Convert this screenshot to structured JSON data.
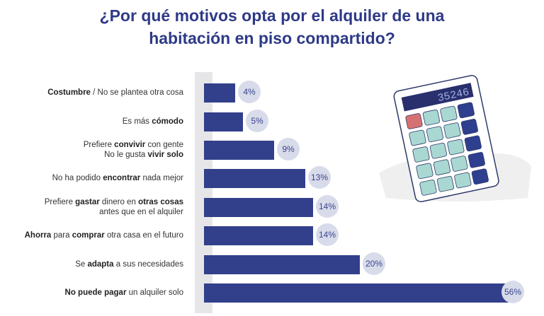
{
  "chart_data": {
    "type": "bar",
    "orientation": "horizontal",
    "title": "¿Por qué motivos opta por el alquiler de una habitación en piso compartido?",
    "title_lines": [
      "¿Por qué motivos opta por el alquiler de una",
      "habitación en piso compartido?"
    ],
    "categories": [
      {
        "lines": [
          [
            {
              "t": "Costumbre",
              "b": true
            },
            {
              "t": " / No se plantea otra cosa",
              "b": false
            }
          ]
        ]
      },
      {
        "lines": [
          [
            {
              "t": "Es más ",
              "b": false
            },
            {
              "t": "cómodo",
              "b": true
            }
          ]
        ]
      },
      {
        "lines": [
          [
            {
              "t": "Prefiere ",
              "b": false
            },
            {
              "t": "convivir",
              "b": true
            },
            {
              "t": " con gente",
              "b": false
            }
          ],
          [
            {
              "t": "No le gusta ",
              "b": false
            },
            {
              "t": "vivir solo",
              "b": true
            }
          ]
        ]
      },
      {
        "lines": [
          [
            {
              "t": "No ha podido ",
              "b": false
            },
            {
              "t": "encontrar",
              "b": true
            },
            {
              "t": " nada mejor",
              "b": false
            }
          ]
        ]
      },
      {
        "lines": [
          [
            {
              "t": "Prefiere ",
              "b": false
            },
            {
              "t": "gastar",
              "b": true
            },
            {
              "t": " dinero en ",
              "b": false
            },
            {
              "t": "otras cosas",
              "b": true
            }
          ],
          [
            {
              "t": "antes que en el alquiler",
              "b": false
            }
          ]
        ]
      },
      {
        "lines": [
          [
            {
              "t": "Ahorra",
              "b": true
            },
            {
              "t": " para ",
              "b": false
            },
            {
              "t": "comprar",
              "b": true
            },
            {
              "t": " otra casa en el futuro",
              "b": false
            }
          ]
        ]
      },
      {
        "lines": [
          [
            {
              "t": "Se ",
              "b": false
            },
            {
              "t": "adapta",
              "b": true
            },
            {
              "t": " a sus necesidades",
              "b": false
            }
          ]
        ]
      },
      {
        "lines": [
          [
            {
              "t": "No puede pagar",
              "b": true
            },
            {
              "t": " un alquiler solo",
              "b": false
            }
          ]
        ]
      }
    ],
    "values": [
      4,
      5,
      9,
      13,
      14,
      14,
      20,
      56
    ],
    "value_labels": [
      "4%",
      "5%",
      "9%",
      "13%",
      "14%",
      "14%",
      "20%",
      "56%"
    ],
    "unit": "%",
    "colors": {
      "bar": "#323f8a",
      "label_bubble": "#d8dbe9",
      "title": "#2e3a87"
    }
  },
  "illustration": {
    "calculator_display": "35246"
  }
}
